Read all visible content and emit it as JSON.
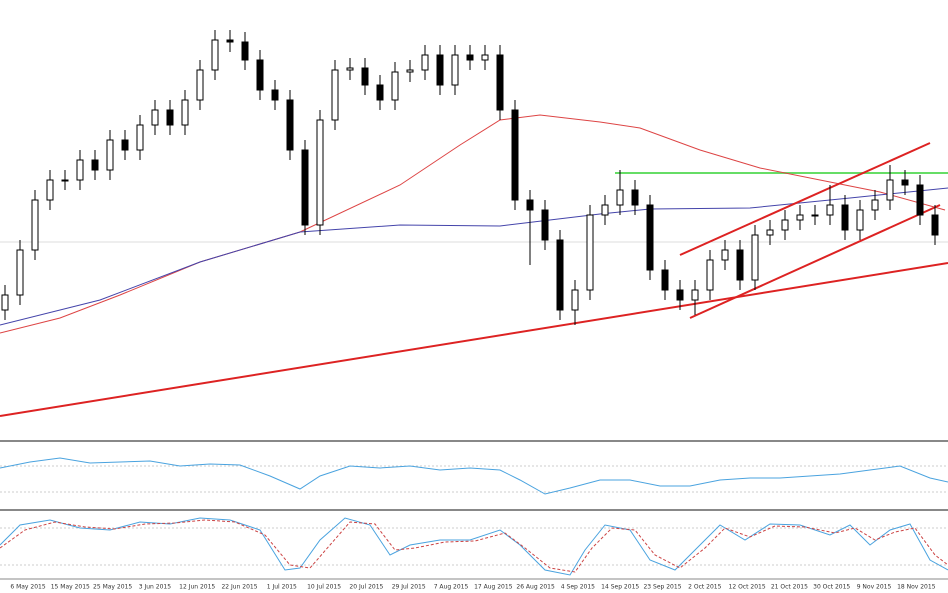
{
  "chart_data": {
    "type": "candlestick",
    "ylim": [
      0,
      440
    ],
    "up_color": "#ffffff",
    "down_color": "#000000",
    "edge_color": "#000000",
    "open": [
      130,
      145,
      190,
      240,
      260,
      260,
      280,
      270,
      300,
      290,
      315,
      330,
      315,
      340,
      370,
      400,
      398,
      380,
      350,
      340,
      290,
      215,
      320,
      370,
      372,
      355,
      340,
      368,
      370,
      385,
      355,
      385,
      380,
      385,
      330,
      240,
      230,
      200,
      130,
      150,
      225,
      235,
      250,
      235,
      170,
      150,
      140,
      150,
      180,
      190,
      160,
      205,
      210,
      220,
      225,
      225,
      235,
      210,
      230,
      240,
      260,
      255,
      225
    ],
    "high": [
      155,
      200,
      250,
      270,
      270,
      290,
      290,
      310,
      310,
      325,
      340,
      340,
      350,
      380,
      410,
      410,
      408,
      390,
      360,
      350,
      300,
      330,
      380,
      382,
      382,
      365,
      378,
      380,
      395,
      395,
      395,
      395,
      395,
      395,
      340,
      250,
      240,
      210,
      160,
      235,
      245,
      270,
      260,
      245,
      180,
      160,
      160,
      190,
      200,
      200,
      215,
      220,
      230,
      235,
      235,
      255,
      245,
      240,
      250,
      275,
      270,
      265,
      235
    ],
    "low": [
      120,
      135,
      180,
      230,
      250,
      250,
      260,
      260,
      280,
      280,
      305,
      305,
      305,
      330,
      360,
      388,
      370,
      340,
      330,
      280,
      205,
      205,
      310,
      360,
      345,
      330,
      330,
      358,
      360,
      345,
      345,
      370,
      370,
      320,
      230,
      175,
      190,
      120,
      115,
      140,
      215,
      225,
      225,
      160,
      140,
      130,
      125,
      140,
      170,
      150,
      150,
      195,
      200,
      210,
      215,
      215,
      200,
      200,
      220,
      230,
      245,
      215,
      195
    ],
    "close": [
      145,
      190,
      240,
      260,
      260,
      280,
      270,
      300,
      290,
      315,
      330,
      315,
      340,
      370,
      400,
      398,
      380,
      350,
      340,
      290,
      215,
      320,
      370,
      372,
      355,
      340,
      368,
      370,
      385,
      355,
      385,
      380,
      385,
      330,
      240,
      230,
      200,
      130,
      150,
      225,
      235,
      250,
      235,
      170,
      150,
      140,
      150,
      180,
      190,
      160,
      205,
      210,
      220,
      225,
      225,
      235,
      210,
      230,
      240,
      260,
      255,
      225,
      205
    ],
    "x_labels": [
      "6 May 2015",
      "15 May 2015",
      "25 May 2015",
      "3 Jun 2015",
      "12 Jun 2015",
      "22 Jun 2015",
      "1 Jul 2015",
      "10 Jul 2015",
      "20 Jul 2015",
      "29 Jul 2015",
      "7 Aug 2015",
      "17 Aug 2015",
      "26 Aug 2015",
      "4 Sep 2015",
      "14 Sep 2015",
      "23 Sep 2015",
      "2 Oct 2015",
      "12 Oct 2015",
      "21 Oct 2015",
      "30 Oct 2015",
      "9 Nov 2015",
      "18 Nov 2015"
    ]
  }
}
